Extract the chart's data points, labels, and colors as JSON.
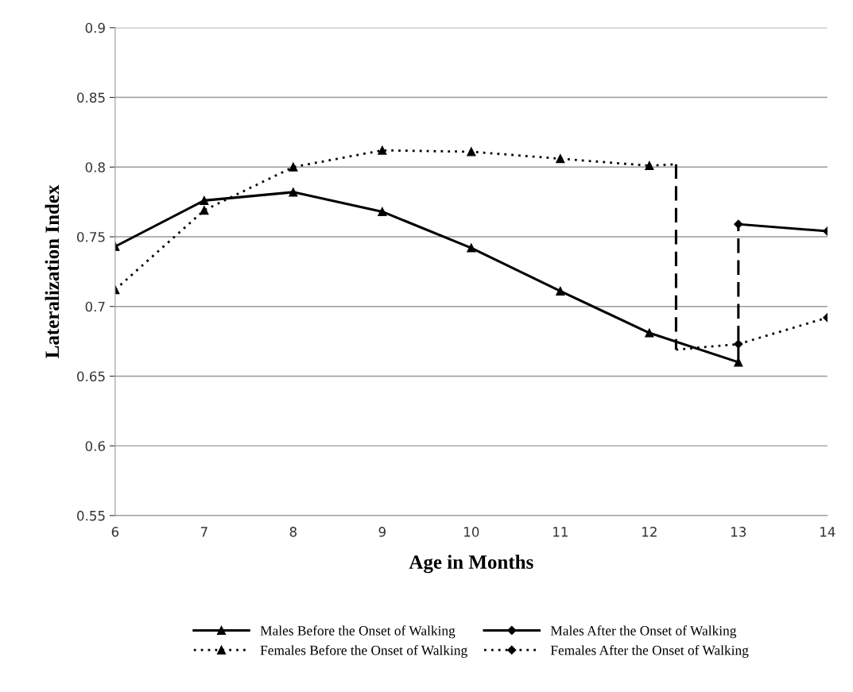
{
  "chart_data": {
    "type": "line",
    "xlabel": "Age in Months",
    "ylabel": "Lateralization Index",
    "xlim": [
      6,
      14
    ],
    "xticks": [
      6,
      7,
      8,
      9,
      10,
      11,
      12,
      13,
      14
    ],
    "ylim": [
      0.55,
      0.9
    ],
    "yticks": [
      0.55,
      0.6,
      0.65,
      0.7,
      0.75,
      0.8,
      0.85,
      0.9
    ],
    "grid": "y",
    "legend": "bottom",
    "series": [
      {
        "name": "Males Before the Onset of Walking",
        "color": "#000000",
        "line_style": "solid",
        "marker": "triangle",
        "x": [
          6,
          7,
          8,
          9,
          10,
          11,
          12,
          13
        ],
        "values": [
          0.743,
          0.776,
          0.782,
          0.768,
          0.742,
          0.711,
          0.681,
          0.66
        ]
      },
      {
        "name": "Males After the Onset of Walking",
        "color": "#000000",
        "line_style": "solid",
        "marker": "diamond",
        "x": [
          13,
          14
        ],
        "values": [
          0.759,
          0.754
        ]
      },
      {
        "name": "Females Before the Onset of Walking",
        "color": "#000000",
        "line_style": "dotted",
        "marker": "triangle",
        "x": [
          6,
          7,
          8,
          9,
          10,
          11,
          12
        ],
        "values": [
          0.712,
          0.769,
          0.8,
          0.812,
          0.811,
          0.806,
          0.801
        ]
      },
      {
        "name": "Females After the Onset of Walking",
        "color": "#000000",
        "line_style": "dotted",
        "marker": "diamond",
        "x": [
          13,
          14
        ],
        "values": [
          0.673,
          0.692
        ]
      },
      {
        "color": "#000000",
        "line_style": "dotted",
        "marker": "none",
        "x": [
          12,
          12.3
        ],
        "values": [
          0.801,
          0.802
        ]
      },
      {
        "color": "#000000",
        "line_style": "dotted",
        "marker": "none",
        "x": [
          12.3,
          13
        ],
        "values": [
          0.669,
          0.673
        ]
      },
      {
        "color": "#000000",
        "line_style": "dashed",
        "marker": "none",
        "x": [
          12.3,
          12.3
        ],
        "values": [
          0.802,
          0.669
        ]
      },
      {
        "color": "#000000",
        "line_style": "dashed",
        "marker": "none",
        "x": [
          13,
          13
        ],
        "values": [
          0.66,
          0.759
        ]
      }
    ]
  }
}
